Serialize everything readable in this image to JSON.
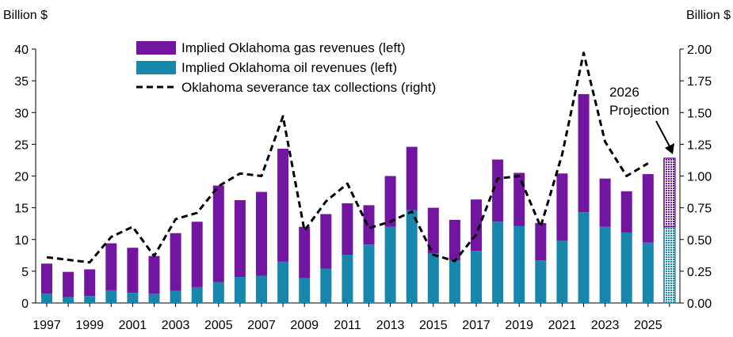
{
  "chart_data": {
    "type": "bar",
    "stacked": true,
    "left_axis": {
      "label": "Billion $",
      "range": [
        0,
        40
      ],
      "ticks": [
        "0",
        "5",
        "10",
        "15",
        "20",
        "25",
        "30",
        "35",
        "40"
      ]
    },
    "right_axis": {
      "label": "Billion $",
      "range": [
        0,
        2.0
      ],
      "ticks": [
        "0.00",
        "0.25",
        "0.50",
        "0.75",
        "1.00",
        "1.25",
        "1.50",
        "1.75",
        "2.00"
      ]
    },
    "x": [
      1997,
      1998,
      1999,
      2000,
      2001,
      2002,
      2003,
      2004,
      2005,
      2006,
      2007,
      2008,
      2009,
      2010,
      2011,
      2012,
      2013,
      2014,
      2015,
      2016,
      2017,
      2018,
      2019,
      2020,
      2021,
      2022,
      2023,
      2024,
      2025,
      2026
    ],
    "x_tick_labels": [
      "1997",
      "1999",
      "2001",
      "2003",
      "2005",
      "2007",
      "2009",
      "2011",
      "2013",
      "2015",
      "2017",
      "2019",
      "2021",
      "2023",
      "2025"
    ],
    "series": [
      {
        "name": "Implied Oklahoma oil revenues (left)",
        "axis": "left",
        "kind": "bar",
        "color": "#1887AE",
        "values": [
          1.5,
          0.9,
          1.1,
          2.0,
          1.6,
          1.5,
          1.9,
          2.5,
          3.3,
          4.1,
          4.3,
          6.5,
          3.9,
          5.4,
          7.6,
          9.2,
          12.0,
          14.6,
          7.8,
          6.7,
          8.2,
          12.8,
          12.1,
          6.7,
          9.8,
          14.3,
          12.0,
          11.1,
          9.5,
          12.0
        ]
      },
      {
        "name": "Implied Oklahoma gas revenues (left)",
        "axis": "left",
        "kind": "bar",
        "color": "#7215A1",
        "values": [
          4.7,
          4.0,
          4.2,
          7.4,
          7.1,
          5.9,
          9.1,
          10.3,
          15.2,
          12.1,
          13.2,
          17.8,
          8.1,
          8.6,
          8.1,
          6.2,
          8.0,
          10.0,
          7.2,
          6.4,
          8.1,
          9.8,
          8.4,
          5.9,
          10.6,
          18.6,
          7.6,
          6.5,
          10.8,
          10.8
        ]
      },
      {
        "name": "Oklahoma severance tax collections (right)",
        "axis": "right",
        "kind": "line",
        "style": "dashed",
        "color": "#000000",
        "points": [
          [
            1997,
            0.36
          ],
          [
            1999,
            0.32
          ],
          [
            2000,
            0.52
          ],
          [
            2001,
            0.6
          ],
          [
            2002,
            0.37
          ],
          [
            2003,
            0.66
          ],
          [
            2004,
            0.71
          ],
          [
            2005,
            0.92
          ],
          [
            2006,
            1.02
          ],
          [
            2007,
            1.0
          ],
          [
            2008,
            1.47
          ],
          [
            2009,
            0.57
          ],
          [
            2010,
            0.8
          ],
          [
            2011,
            0.94
          ],
          [
            2012,
            0.59
          ],
          [
            2013,
            0.64
          ],
          [
            2014,
            0.72
          ],
          [
            2015,
            0.38
          ],
          [
            2016,
            0.33
          ],
          [
            2017,
            0.54
          ],
          [
            2018,
            0.98
          ],
          [
            2019,
            1.0
          ],
          [
            2020,
            0.6
          ],
          [
            2021,
            1.17
          ],
          [
            2022,
            1.97
          ],
          [
            2023,
            1.27
          ],
          [
            2024,
            1.0
          ],
          [
            2025,
            1.1
          ]
        ]
      }
    ],
    "projection": {
      "year": 2026,
      "label_lines": [
        "2026",
        "Projection"
      ]
    },
    "legend": {
      "placement": "top-center",
      "order": [
        "Implied Oklahoma gas revenues (left)",
        "Implied Oklahoma oil revenues (left)",
        "Oklahoma severance tax collections (right)"
      ]
    },
    "grid": false
  }
}
